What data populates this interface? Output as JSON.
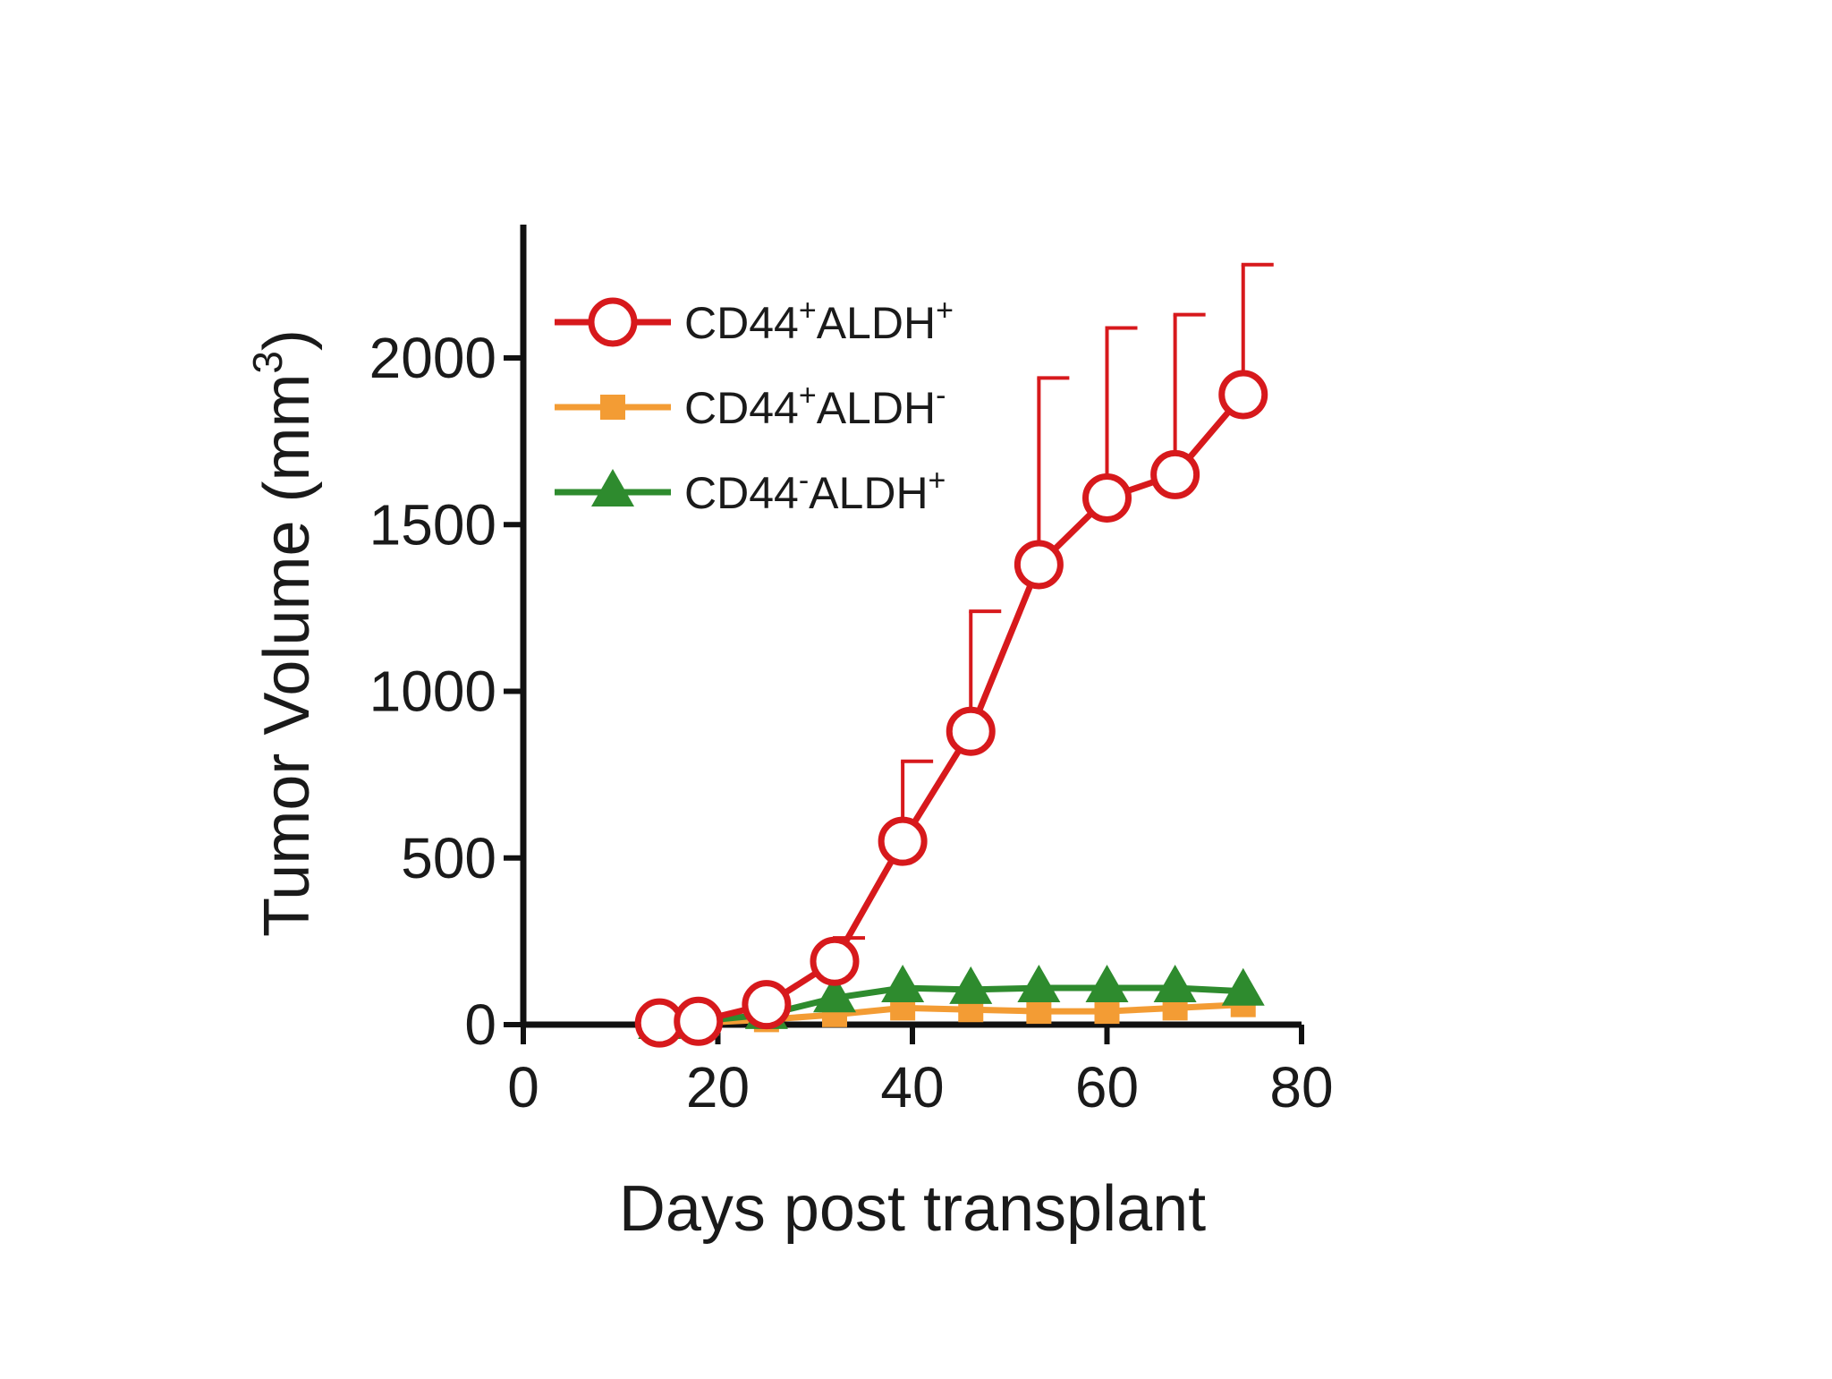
{
  "chart_data": {
    "type": "line",
    "title": "",
    "xlabel": "Days post transplant",
    "ylabel": "Tumor  Volume (mm",
    "ylabel_sup": "3",
    "ylabel_tail": ")",
    "xlim": [
      0,
      80
    ],
    "ylim": [
      0,
      2400
    ],
    "xticks": [
      0,
      20,
      40,
      60,
      80
    ],
    "yticks": [
      0,
      500,
      1000,
      1500,
      2000
    ],
    "grid": false,
    "legend_position": "top-left",
    "series": [
      {
        "label_main": "CD44",
        "label_sup1": "+",
        "label_mid": "ALDH",
        "label_sup2": "+",
        "color": "#d7191c",
        "marker": "open-circle",
        "x": [
          14,
          18,
          25,
          32,
          39,
          46,
          53,
          60,
          67,
          74
        ],
        "y": [
          5,
          10,
          60,
          190,
          550,
          880,
          1380,
          1580,
          1650,
          1890
        ],
        "error_upper": [
          null,
          null,
          null,
          260,
          790,
          1240,
          1940,
          2090,
          2130,
          2280
        ]
      },
      {
        "label_main": "CD44",
        "label_sup1": "+",
        "label_mid": "ALDH",
        "label_sup2": "-",
        "color": "#f39c34",
        "marker": "filled-square",
        "x": [
          14,
          18,
          25,
          32,
          39,
          46,
          53,
          60,
          67,
          74
        ],
        "y": [
          0,
          5,
          15,
          30,
          50,
          45,
          40,
          40,
          50,
          60
        ],
        "error_upper": []
      },
      {
        "label_main": "CD44",
        "label_sup1": "-",
        "label_mid": "ALDH",
        "label_sup2": "+",
        "color": "#2e8b2e",
        "marker": "filled-triangle",
        "x": [
          14,
          18,
          25,
          32,
          39,
          46,
          53,
          60,
          67,
          74
        ],
        "y": [
          0,
          10,
          30,
          80,
          110,
          105,
          110,
          110,
          110,
          100
        ],
        "error_upper": []
      }
    ]
  }
}
